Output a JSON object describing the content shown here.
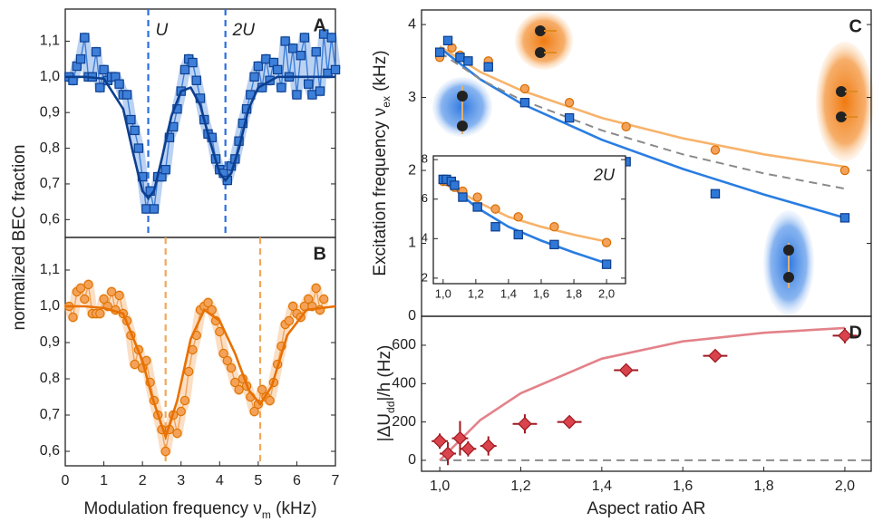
{
  "chart_data": [
    {
      "type": "line",
      "panel": "A",
      "xlim": [
        0,
        7
      ],
      "ylim": [
        0.55,
        1.19
      ],
      "yticks": [
        {
          "value": 0.6,
          "label": "0,6"
        },
        {
          "value": 0.7,
          "label": "0,7"
        },
        {
          "value": 0.8,
          "label": "0,8"
        },
        {
          "value": 0.9,
          "label": "0,9"
        },
        {
          "value": 1.0,
          "label": "1,0"
        },
        {
          "value": 1.1,
          "label": "1,1"
        }
      ],
      "ylabel": [
        "normalized BEC fraction"
      ],
      "markers": [
        {
          "x": 2.15,
          "label": "U"
        },
        {
          "x": 4.15,
          "label": "2U"
        }
      ],
      "marker_color": "#2a6fe0",
      "series": [
        {
          "style": "points",
          "marker": "square",
          "connect": true,
          "color": "#3d7fd9",
          "edge": "#0d3f8f",
          "x": [
            0.1,
            0.2,
            0.3,
            0.4,
            0.5,
            0.6,
            0.7,
            0.8,
            0.9,
            1.0,
            1.1,
            1.2,
            1.3,
            1.4,
            1.5,
            1.6,
            1.7,
            1.8,
            1.9,
            2.0,
            2.1,
            2.2,
            2.3,
            2.4,
            2.5,
            2.6,
            2.7,
            2.8,
            2.9,
            3.0,
            3.1,
            3.2,
            3.3,
            3.4,
            3.5,
            3.6,
            3.7,
            3.8,
            3.9,
            4.0,
            4.1,
            4.2,
            4.3,
            4.4,
            4.5,
            4.6,
            4.7,
            4.8,
            4.9,
            5.0,
            5.1,
            5.2,
            5.3,
            5.4,
            5.5,
            5.6,
            5.7,
            5.8,
            5.9,
            6.0,
            6.1,
            6.2,
            6.3,
            6.4,
            6.5,
            6.6,
            6.7,
            6.8,
            6.9,
            7.0
          ],
          "values": [
            1.0,
            0.99,
            1.03,
            1.05,
            1.11,
            1.0,
            1.0,
            1.07,
            0.97,
            1.02,
            0.99,
            1.0,
            1.0,
            0.98,
            0.95,
            0.95,
            0.88,
            0.85,
            0.8,
            0.72,
            0.63,
            0.68,
            0.63,
            0.72,
            0.72,
            0.74,
            0.83,
            0.86,
            0.91,
            0.96,
            1.02,
            1.05,
            1.04,
            0.99,
            0.94,
            0.88,
            0.84,
            0.83,
            0.77,
            0.74,
            0.73,
            0.71,
            0.75,
            0.77,
            0.82,
            0.87,
            0.91,
            0.95,
            1.0,
            1.03,
            0.97,
            1.05,
            0.99,
            1.04,
            1.02,
            0.97,
            1.1,
            1.0,
            1.08,
            0.95,
            1.06,
            1.11,
            0.98,
            0.95,
            1.07,
            0.96,
            1.12,
            1.01,
            1.11,
            1.02
          ]
        },
        {
          "style": "curve",
          "color": "#0d3f8f",
          "x": [
            0,
            0.5,
            1.0,
            1.5,
            1.75,
            2.0,
            2.15,
            2.3,
            2.5,
            2.75,
            3.0,
            3.25,
            3.5,
            3.75,
            4.0,
            4.15,
            4.3,
            4.5,
            4.75,
            5.0,
            5.5,
            6.0,
            7.0
          ],
          "values": [
            1.0,
            1.0,
            0.995,
            0.91,
            0.79,
            0.68,
            0.66,
            0.68,
            0.77,
            0.89,
            0.96,
            0.97,
            0.92,
            0.82,
            0.73,
            0.71,
            0.73,
            0.8,
            0.91,
            0.97,
            1.0,
            1.0,
            1.0
          ]
        }
      ]
    },
    {
      "type": "line",
      "panel": "B",
      "xlim": [
        0,
        7
      ],
      "ylim": [
        0.56,
        1.19
      ],
      "xticks": [
        0,
        1,
        2,
        3,
        4,
        5,
        6,
        7
      ],
      "yticks": [
        {
          "value": 0.6,
          "label": "0,6"
        },
        {
          "value": 0.7,
          "label": "0,7"
        },
        {
          "value": 0.8,
          "label": "0,8"
        },
        {
          "value": 0.9,
          "label": "0,9"
        },
        {
          "value": 1.0,
          "label": "1,0"
        },
        {
          "value": 1.1,
          "label": "1,1"
        }
      ],
      "xlabel": [
        "Modulation frequency ν",
        "m",
        " (kHz)"
      ],
      "markers": [
        {
          "x": 2.6
        },
        {
          "x": 5.05
        }
      ],
      "marker_color": "#f2a75a",
      "series": [
        {
          "style": "points",
          "marker": "circle",
          "connect": true,
          "color": "#f4a259",
          "edge": "#e07400",
          "x": [
            0.1,
            0.2,
            0.3,
            0.4,
            0.5,
            0.6,
            0.7,
            0.8,
            0.9,
            1.0,
            1.1,
            1.2,
            1.3,
            1.4,
            1.5,
            1.6,
            1.7,
            1.8,
            1.9,
            2.0,
            2.1,
            2.2,
            2.3,
            2.4,
            2.5,
            2.6,
            2.7,
            2.8,
            2.9,
            3.0,
            3.1,
            3.2,
            3.3,
            3.4,
            3.5,
            3.6,
            3.7,
            3.8,
            3.9,
            4.0,
            4.1,
            4.2,
            4.3,
            4.4,
            4.5,
            4.6,
            4.7,
            4.8,
            4.9,
            5.0,
            5.1,
            5.2,
            5.3,
            5.4,
            5.5,
            5.6,
            5.7,
            5.8,
            5.9,
            6.0,
            6.1,
            6.2,
            6.3,
            6.4,
            6.5,
            6.6,
            6.7
          ],
          "values": [
            1.0,
            0.97,
            1.04,
            1.05,
            1.02,
            1.06,
            0.98,
            0.98,
            0.98,
            1.02,
            1.0,
            1.04,
            0.99,
            1.03,
            0.98,
            0.96,
            0.92,
            0.84,
            0.88,
            0.83,
            0.85,
            0.79,
            0.74,
            0.7,
            0.66,
            0.6,
            0.66,
            0.7,
            0.65,
            0.71,
            0.74,
            0.82,
            0.88,
            0.92,
            0.99,
            1.0,
            1.01,
            0.99,
            0.96,
            0.93,
            0.87,
            0.85,
            0.83,
            0.79,
            0.77,
            0.8,
            0.78,
            0.75,
            0.71,
            0.73,
            0.77,
            0.75,
            0.74,
            0.79,
            0.84,
            0.89,
            0.95,
            0.96,
            1.0,
            0.98,
            0.97,
            1.0,
            1.02,
            1.0,
            1.05,
            0.99,
            1.02
          ]
        },
        {
          "style": "curve",
          "color": "#e87000",
          "x": [
            0,
            0.5,
            1.0,
            1.5,
            2.0,
            2.25,
            2.6,
            2.9,
            3.25,
            3.6,
            4.0,
            4.4,
            4.75,
            5.05,
            5.35,
            5.75,
            6.25,
            7.0
          ],
          "values": [
            1.0,
            1.0,
            0.995,
            0.98,
            0.85,
            0.75,
            0.64,
            0.74,
            0.91,
            0.99,
            0.96,
            0.87,
            0.77,
            0.73,
            0.78,
            0.92,
            0.99,
            1.0
          ]
        }
      ]
    },
    {
      "type": "scatter",
      "panel": "C",
      "xlim": [
        0.955,
        2.065
      ],
      "ylim": [
        0,
        4.2
      ],
      "yticks": [
        0,
        1,
        2,
        3,
        4
      ],
      "ylabel": [
        "Excitation frequency ν",
        "ex",
        " (kHz)"
      ],
      "series": [
        {
          "style": "curve",
          "color": "#f7b36b",
          "x": [
            1.0,
            1.1,
            1.2,
            1.4,
            1.6,
            1.8,
            2.0
          ],
          "values": [
            3.7,
            3.35,
            3.1,
            2.72,
            2.44,
            2.22,
            2.05
          ]
        },
        {
          "style": "curve",
          "color": "#2a7de1",
          "x": [
            1.0,
            1.1,
            1.2,
            1.4,
            1.6,
            1.8,
            2.0
          ],
          "values": [
            3.68,
            3.25,
            2.92,
            2.42,
            2.02,
            1.67,
            1.35
          ]
        },
        {
          "style": "dashed",
          "color": "#8a8a8a",
          "x": [
            1.0,
            1.1,
            1.2,
            1.4,
            1.6,
            1.8,
            2.0
          ],
          "values": [
            3.62,
            3.25,
            2.97,
            2.55,
            2.22,
            1.96,
            1.75
          ]
        },
        {
          "style": "points",
          "marker": "circle",
          "color": "#f4a259",
          "edge": "#d96d00",
          "x": [
            1.0,
            1.03,
            1.05,
            1.07,
            1.12,
            1.21,
            1.32,
            1.46,
            1.68,
            2.0
          ],
          "values": [
            3.55,
            3.68,
            3.58,
            3.5,
            3.5,
            3.12,
            2.93,
            2.6,
            2.28,
            2.0
          ]
        },
        {
          "style": "points",
          "marker": "square",
          "color": "#2f78d8",
          "edge": "#0c3d8c",
          "x": [
            1.0,
            1.02,
            1.05,
            1.07,
            1.12,
            1.21,
            1.32,
            1.46,
            1.68,
            2.0
          ],
          "values": [
            3.62,
            3.78,
            3.55,
            3.5,
            3.42,
            2.93,
            2.72,
            2.12,
            1.68,
            1.35
          ]
        }
      ]
    },
    {
      "type": "scatter",
      "panel": "inset",
      "title": "2U",
      "xlim": [
        0.94,
        2.116
      ],
      "ylim": [
        1.72,
        8.19
      ],
      "xticks": [
        {
          "value": 1.0,
          "label": "1,0"
        },
        {
          "value": 1.2,
          "label": "1,2"
        },
        {
          "value": 1.4,
          "label": "1,4"
        },
        {
          "value": 1.6,
          "label": "1,6"
        },
        {
          "value": 1.8,
          "label": "1,8"
        },
        {
          "value": 2.0,
          "label": "2,0"
        }
      ],
      "yticks": [
        2,
        4,
        6,
        8
      ],
      "series": [
        {
          "style": "curve",
          "color": "#f7b36b",
          "x": [
            1.0,
            1.1,
            1.2,
            1.4,
            1.6,
            1.8,
            2.0
          ],
          "values": [
            7.2,
            6.4,
            5.9,
            5.1,
            4.6,
            4.2,
            3.85
          ]
        },
        {
          "style": "curve",
          "color": "#2a7de1",
          "x": [
            1.0,
            1.1,
            1.2,
            1.4,
            1.6,
            1.8,
            2.0
          ],
          "values": [
            7.2,
            6.3,
            5.6,
            4.6,
            3.9,
            3.3,
            2.75
          ]
        },
        {
          "style": "points",
          "marker": "circle",
          "color": "#f4a259",
          "edge": "#d96d00",
          "x": [
            1.0,
            1.02,
            1.05,
            1.07,
            1.12,
            1.21,
            1.32,
            1.46,
            1.68,
            2.0
          ],
          "values": [
            6.9,
            6.9,
            6.8,
            6.6,
            6.4,
            6.1,
            5.5,
            5.1,
            4.6,
            3.8
          ]
        },
        {
          "style": "points",
          "marker": "square",
          "color": "#2f78d8",
          "edge": "#0c3d8c",
          "x": [
            1.0,
            1.02,
            1.05,
            1.07,
            1.12,
            1.21,
            1.32,
            1.46,
            1.68,
            2.0
          ],
          "values": [
            7.0,
            7.0,
            6.9,
            6.7,
            6.1,
            5.6,
            4.6,
            4.2,
            3.7,
            2.7
          ]
        }
      ]
    },
    {
      "type": "scatter",
      "panel": "D",
      "xlim": [
        0.955,
        2.065
      ],
      "ylim": [
        -57,
        751
      ],
      "xticks": [
        {
          "value": 1.0,
          "label": "1,0"
        },
        {
          "value": 1.2,
          "label": "1,2"
        },
        {
          "value": 1.4,
          "label": "1,4"
        },
        {
          "value": 1.6,
          "label": "1,6"
        },
        {
          "value": 1.8,
          "label": "1,8"
        },
        {
          "value": 2.0,
          "label": "2,0"
        }
      ],
      "yticks": [
        0,
        200,
        400,
        600
      ],
      "xlabel": [
        "Aspect ratio AR"
      ],
      "ylabel": [
        "|ΔU",
        "dd",
        "|/h (Hz)"
      ],
      "series": [
        {
          "style": "dashed",
          "color": "#8a8a8a",
          "x": [
            1.0,
            2.065
          ],
          "values": [
            0,
            0
          ]
        },
        {
          "style": "curve",
          "color": "#e3828a",
          "x": [
            1.0,
            1.1,
            1.2,
            1.4,
            1.6,
            1.8,
            2.0
          ],
          "values": [
            0,
            210,
            350,
            530,
            620,
            665,
            690
          ]
        },
        {
          "style": "points",
          "marker": "diamond",
          "color": "#d9434b",
          "edge": "#a01820",
          "x": [
            1.0,
            1.02,
            1.05,
            1.07,
            1.12,
            1.21,
            1.32,
            1.46,
            1.68,
            2.0
          ],
          "values": [
            100,
            35,
            115,
            60,
            75,
            190,
            200,
            470,
            545,
            650
          ],
          "yerr": [
            40,
            60,
            90,
            40,
            50,
            50,
            30,
            30,
            30,
            40
          ],
          "xerr": [
            0.02,
            0.02,
            0.02,
            0.02,
            0.02,
            0.03,
            0.03,
            0.03,
            0.03,
            0.03
          ]
        }
      ]
    }
  ]
}
